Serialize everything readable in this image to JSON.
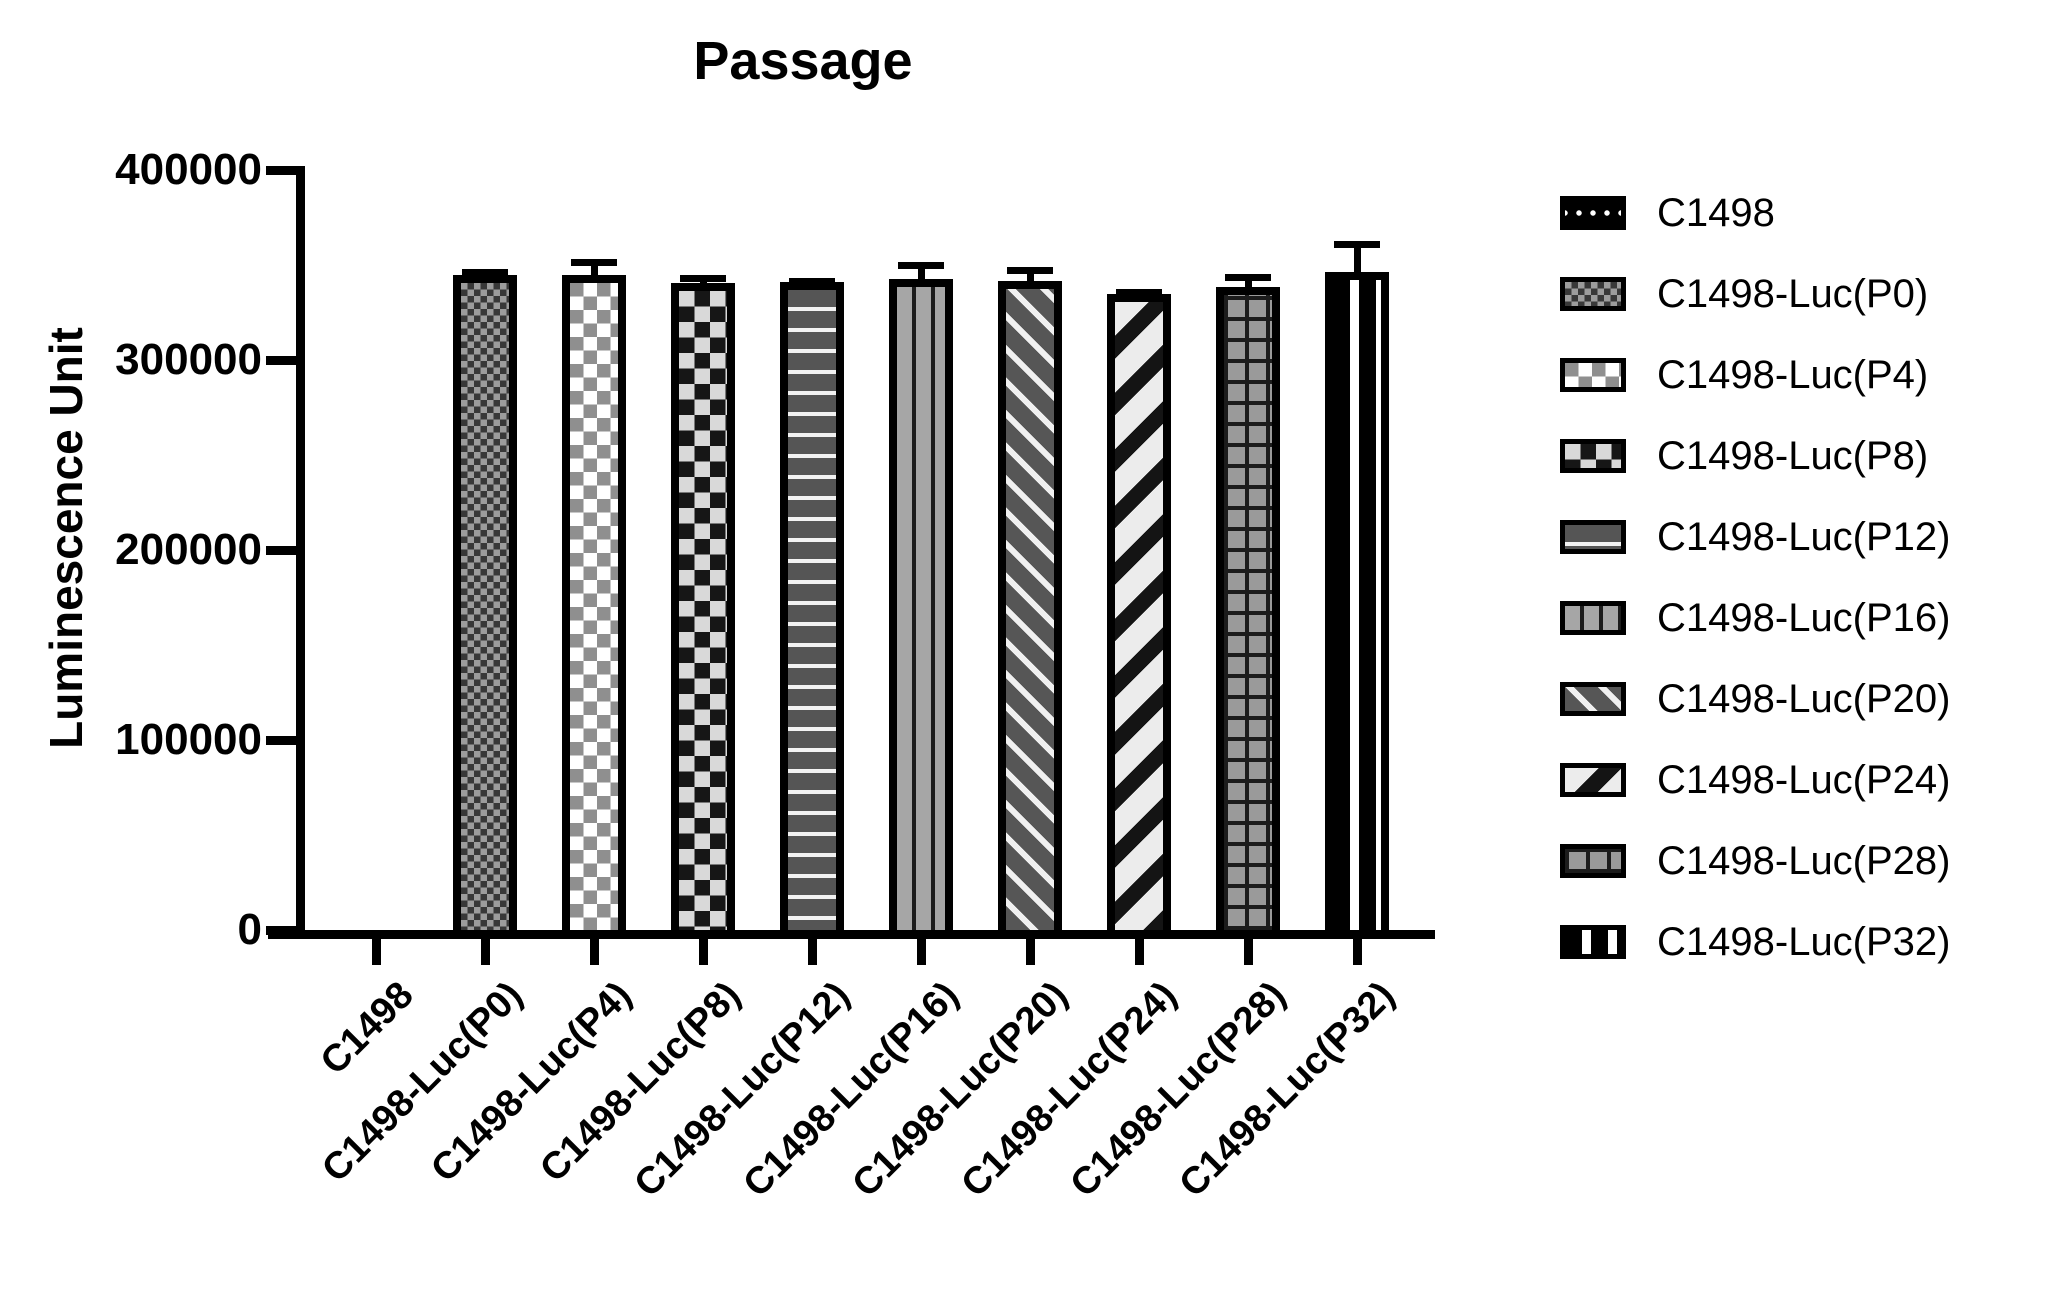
{
  "palette": {
    "foreground": "#000000",
    "background": "#ffffff",
    "gray_dark": "#555555",
    "gray_mid": "#9c9c9c",
    "gray_light": "#d9d9d9",
    "near_white": "#ececec"
  },
  "chart_data": {
    "type": "bar",
    "title": "Passage",
    "xlabel": "",
    "ylabel": "Luminescence Unit",
    "ylim": [
      0,
      400000
    ],
    "yticks": [
      0,
      100000,
      200000,
      300000,
      400000
    ],
    "ytick_labels": [
      "0",
      "100000",
      "200000",
      "300000",
      "400000"
    ],
    "grid": "off",
    "legend_position": "right",
    "error_bars": "upper only, cap and stem, black",
    "categories": [
      "C1498",
      "C1498-Luc(P0)",
      "C1498-Luc(P4)",
      "C1498-Luc(P8)",
      "C1498-Luc(P12)",
      "C1498-Luc(P16)",
      "C1498-Luc(P20)",
      "C1498-Luc(P24)",
      "C1498-Luc(P28)",
      "C1498-Luc(P32)"
    ],
    "series": [
      {
        "name": "Luminescence Unit",
        "values": [
          0,
          345000,
          345000,
          340500,
          341000,
          342500,
          341500,
          335000,
          338500,
          346500
        ],
        "errors": [
          0,
          3000,
          8000,
          4500,
          2000,
          9000,
          7500,
          2500,
          7000,
          16000
        ]
      }
    ],
    "patterns": [
      "dots",
      "checker-fine",
      "checker-light",
      "checker-dark",
      "hstripes",
      "vlines",
      "diag-down",
      "diag-up",
      "grid",
      "vbands"
    ],
    "legend": [
      {
        "label": "C1498",
        "pattern": "dots"
      },
      {
        "label": "C1498-Luc(P0)",
        "pattern": "checker-fine"
      },
      {
        "label": "C1498-Luc(P4)",
        "pattern": "checker-light"
      },
      {
        "label": "C1498-Luc(P8)",
        "pattern": "checker-dark"
      },
      {
        "label": "C1498-Luc(P12)",
        "pattern": "hstripes"
      },
      {
        "label": "C1498-Luc(P16)",
        "pattern": "vlines"
      },
      {
        "label": "C1498-Luc(P20)",
        "pattern": "diag-down"
      },
      {
        "label": "C1498-Luc(P24)",
        "pattern": "diag-up"
      },
      {
        "label": "C1498-Luc(P28)",
        "pattern": "grid"
      },
      {
        "label": "C1498-Luc(P32)",
        "pattern": "vbands"
      }
    ]
  }
}
